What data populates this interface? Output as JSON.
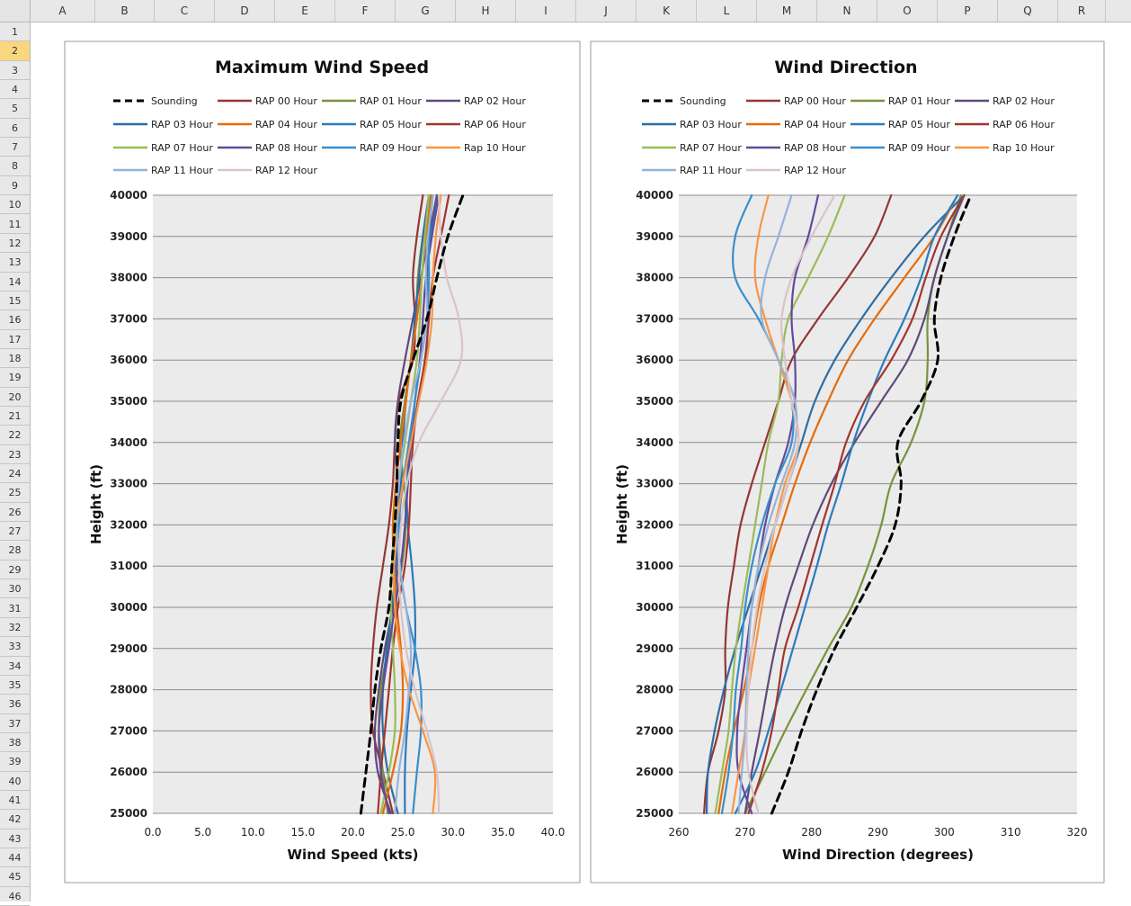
{
  "spreadsheet": {
    "columns": [
      "A",
      "B",
      "C",
      "D",
      "E",
      "F",
      "G",
      "H",
      "I",
      "J",
      "K",
      "L",
      "M",
      "N",
      "O",
      "P",
      "Q",
      "R"
    ],
    "rows": [
      "1",
      "2",
      "3",
      "4",
      "5",
      "6",
      "7",
      "8",
      "9",
      "10",
      "11",
      "12",
      "13",
      "14",
      "15",
      "16",
      "17",
      "18",
      "19",
      "20",
      "21",
      "22",
      "23",
      "24",
      "25",
      "26",
      "27",
      "28",
      "29",
      "30",
      "31",
      "32",
      "33",
      "34",
      "35",
      "36",
      "37",
      "38",
      "39",
      "40",
      "41",
      "42",
      "43",
      "44",
      "45",
      "46"
    ],
    "selected_row": "2"
  },
  "colors": {
    "Sounding": "#000000",
    "RAP 00 Hour": "#943634",
    "RAP 01 Hour": "#77933c",
    "RAP 02 Hour": "#5f497a",
    "RAP 03 Hour": "#2e6da4",
    "RAP 04 Hour": "#e46c0a",
    "RAP 05 Hour": "#2a7bbf",
    "RAP 06 Hour": "#a0362f",
    "RAP 07 Hour": "#9bbb59",
    "RAP 08 Hour": "#604a9b",
    "RAP 09 Hour": "#3a8ecb",
    "Rap 10 Hour": "#f79646",
    "RAP 11 Hour": "#95b3d7",
    "RAP 12 Hour": "#d9c3c8"
  },
  "chart_data": [
    {
      "type": "line",
      "title": "Maximum Wind Speed",
      "xlabel": "Wind Speed (kts)",
      "ylabel": "Height (ft)",
      "xlim": [
        0,
        40
      ],
      "ylim": [
        25000,
        40000
      ],
      "x_ticks": [
        "0.0",
        "5.0",
        "10.0",
        "15.0",
        "20.0",
        "25.0",
        "30.0",
        "35.0",
        "40.0"
      ],
      "y_ticks": [
        "25000",
        "26000",
        "27000",
        "28000",
        "29000",
        "30000",
        "31000",
        "32000",
        "33000",
        "34000",
        "35000",
        "36000",
        "37000",
        "38000",
        "39000",
        "40000"
      ],
      "grid": true,
      "legend_position": "top",
      "heights": [
        25000,
        26000,
        27000,
        28000,
        29000,
        30000,
        31000,
        32000,
        33000,
        34000,
        35000,
        36000,
        37000,
        38000,
        39000,
        40000
      ],
      "series": [
        {
          "name": "Sounding",
          "dash": true,
          "values": [
            20.8,
            21.3,
            21.8,
            22.2,
            22.8,
            23.6,
            23.9,
            24.2,
            24.4,
            24.5,
            24.8,
            26.0,
            27.4,
            28.4,
            29.5,
            31.0
          ]
        },
        {
          "name": "RAP 00 Hour",
          "values": [
            24.0,
            23.0,
            22.0,
            21.8,
            22.0,
            22.4,
            23.0,
            23.6,
            24.0,
            24.2,
            24.6,
            26.0,
            26.2,
            26.0,
            26.4,
            27.0
          ]
        },
        {
          "name": "RAP 01 Hour",
          "values": [
            23.5,
            23.0,
            22.6,
            22.8,
            23.5,
            24.2,
            24.9,
            25.3,
            25.1,
            24.7,
            25.2,
            25.8,
            26.3,
            26.5,
            27.0,
            27.8
          ]
        },
        {
          "name": "RAP 02 Hour",
          "values": [
            23.8,
            22.5,
            22.2,
            22.6,
            23.2,
            24.0,
            24.5,
            24.7,
            24.5,
            24.2,
            24.5,
            25.2,
            26.0,
            26.8,
            27.6,
            28.4
          ]
        },
        {
          "name": "RAP 03 Hour",
          "values": [
            24.5,
            23.5,
            23.0,
            23.0,
            23.4,
            23.9,
            24.3,
            24.6,
            24.8,
            25.0,
            25.3,
            25.8,
            26.2,
            26.6,
            27.0,
            27.6
          ]
        },
        {
          "name": "RAP 04 Hour",
          "values": [
            23.0,
            24.0,
            24.8,
            25.0,
            24.8,
            24.4,
            24.1,
            24.0,
            24.3,
            24.8,
            25.3,
            25.8,
            26.4,
            26.9,
            27.3,
            27.9
          ]
        },
        {
          "name": "RAP 05 Hour",
          "values": [
            25.2,
            25.2,
            25.4,
            25.8,
            26.2,
            26.2,
            25.9,
            25.5,
            25.4,
            25.8,
            26.5,
            27.3,
            27.5,
            27.4,
            27.8,
            28.6
          ]
        },
        {
          "name": "RAP 06 Hour",
          "values": [
            22.5,
            22.8,
            23.2,
            23.6,
            24.0,
            24.5,
            25.2,
            25.6,
            25.8,
            26.0,
            26.5,
            27.2,
            27.6,
            28.0,
            28.8,
            29.6
          ]
        },
        {
          "name": "RAP 07 Hour",
          "values": [
            22.8,
            23.6,
            24.2,
            24.2,
            24.0,
            23.8,
            23.9,
            24.2,
            24.6,
            25.2,
            25.8,
            26.4,
            26.7,
            26.9,
            27.2,
            27.6
          ]
        },
        {
          "name": "RAP 08 Hour",
          "values": [
            23.6,
            22.8,
            22.6,
            23.0,
            23.6,
            24.2,
            24.8,
            25.2,
            25.5,
            25.8,
            26.2,
            26.7,
            27.0,
            27.3,
            27.9,
            28.6
          ]
        },
        {
          "name": "RAP 09 Hour",
          "values": [
            26.0,
            26.4,
            26.8,
            26.8,
            26.2,
            25.3,
            24.7,
            24.6,
            25.0,
            25.6,
            26.2,
            26.8,
            27.4,
            27.6,
            27.6,
            28.0
          ]
        },
        {
          "name": "Rap 10 Hour",
          "values": [
            28.0,
            28.2,
            27.0,
            25.6,
            24.7,
            24.2,
            24.1,
            24.4,
            25.0,
            25.8,
            26.6,
            27.4,
            27.9,
            28.0,
            28.3,
            28.8
          ]
        },
        {
          "name": "RAP 11 Hour",
          "values": [
            24.2,
            24.6,
            25.2,
            25.6,
            25.8,
            25.3,
            24.7,
            24.4,
            24.6,
            25.1,
            25.8,
            26.8,
            27.4,
            27.3,
            27.5,
            28.0
          ]
        },
        {
          "name": "RAP 12 Hour",
          "values": [
            28.6,
            28.4,
            27.4,
            26.2,
            25.3,
            24.8,
            24.6,
            24.8,
            25.4,
            26.6,
            28.8,
            30.8,
            30.6,
            29.4,
            28.8,
            28.6
          ]
        }
      ]
    },
    {
      "type": "line",
      "title": "Wind Direction",
      "xlabel": "Wind Direction (degrees)",
      "ylabel": "Height (ft)",
      "xlim": [
        260,
        320
      ],
      "ylim": [
        25000,
        40000
      ],
      "x_ticks": [
        "260",
        "270",
        "280",
        "290",
        "300",
        "310",
        "320"
      ],
      "y_ticks": [
        "25000",
        "26000",
        "27000",
        "28000",
        "29000",
        "30000",
        "31000",
        "32000",
        "33000",
        "34000",
        "35000",
        "36000",
        "37000",
        "38000",
        "39000",
        "40000"
      ],
      "grid": true,
      "legend_position": "top",
      "heights": [
        25000,
        26000,
        27000,
        28000,
        29000,
        30000,
        31000,
        32000,
        33000,
        34000,
        35000,
        36000,
        37000,
        38000,
        39000,
        40000
      ],
      "series": [
        {
          "name": "Sounding",
          "dash": true,
          "values": [
            274.0,
            276.5,
            278.5,
            280.8,
            283.5,
            286.8,
            290.0,
            292.6,
            293.5,
            293.0,
            296.5,
            299.0,
            298.5,
            299.5,
            301.5,
            304.0
          ]
        },
        {
          "name": "RAP 00 Hour",
          "values": [
            263.8,
            264.4,
            266.0,
            267.0,
            267.0,
            267.4,
            268.3,
            269.3,
            271.0,
            273.0,
            275.0,
            277.0,
            281.0,
            285.5,
            289.5,
            292.0
          ]
        },
        {
          "name": "RAP 01 Hour",
          "values": [
            270.0,
            273.0,
            276.0,
            279.2,
            282.5,
            286.0,
            288.5,
            290.5,
            292.0,
            295.0,
            297.0,
            297.5,
            297.5,
            298.5,
            300.5,
            302.5
          ]
        },
        {
          "name": "RAP 02 Hour",
          "values": [
            270.0,
            271.0,
            272.2,
            273.3,
            274.5,
            276.0,
            278.0,
            280.2,
            283.0,
            286.5,
            290.5,
            294.5,
            297.0,
            298.5,
            300.5,
            303.0
          ]
        },
        {
          "name": "RAP 03 Hour",
          "values": [
            264.2,
            264.4,
            265.4,
            266.8,
            268.5,
            270.5,
            272.5,
            274.5,
            276.5,
            278.5,
            280.5,
            283.5,
            287.5,
            292.0,
            297.0,
            303.0
          ]
        },
        {
          "name": "RAP 04 Hour",
          "values": [
            266.0,
            267.0,
            268.3,
            269.8,
            271.0,
            272.0,
            273.5,
            275.5,
            277.5,
            279.8,
            282.5,
            285.5,
            289.5,
            294.0,
            298.5,
            302.0
          ]
        },
        {
          "name": "RAP 05 Hour",
          "values": [
            268.5,
            271.5,
            273.5,
            275.4,
            277.2,
            279.0,
            280.8,
            282.5,
            284.5,
            286.3,
            288.5,
            291.0,
            294.0,
            296.5,
            298.5,
            302.0
          ]
        },
        {
          "name": "RAP 06 Hour",
          "values": [
            270.5,
            272.5,
            274.0,
            275.0,
            276.0,
            278.0,
            279.8,
            281.6,
            283.5,
            285.2,
            288.0,
            292.0,
            295.2,
            297.2,
            299.5,
            303.0
          ]
        },
        {
          "name": "RAP 07 Hour",
          "values": [
            265.5,
            266.5,
            267.5,
            268.0,
            268.6,
            269.5,
            270.5,
            271.5,
            272.5,
            273.5,
            275.0,
            275.5,
            276.5,
            279.5,
            282.5,
            285.0
          ]
        },
        {
          "name": "RAP 08 Hour",
          "values": [
            271.0,
            269.0,
            268.8,
            269.4,
            270.2,
            271.0,
            272.0,
            273.0,
            274.5,
            276.5,
            277.5,
            277.5,
            277.0,
            277.5,
            279.5,
            281.0
          ]
        },
        {
          "name": "RAP 09 Hour",
          "values": [
            266.5,
            267.5,
            268.2,
            268.6,
            269.4,
            270.0,
            271.0,
            272.5,
            274.5,
            277.0,
            277.0,
            275.0,
            272.0,
            268.5,
            268.5,
            271.0
          ]
        },
        {
          "name": "Rap 10 Hour",
          "values": [
            268.0,
            269.0,
            270.0,
            270.5,
            271.5,
            272.5,
            273.5,
            274.5,
            276.0,
            278.0,
            277.0,
            275.0,
            273.0,
            271.5,
            272.0,
            273.5
          ]
        },
        {
          "name": "RAP 11 Hour",
          "values": [
            269.0,
            269.5,
            270.0,
            270.2,
            270.5,
            271.0,
            272.0,
            273.5,
            275.5,
            277.5,
            277.5,
            275.0,
            272.5,
            273.0,
            275.0,
            277.0
          ]
        },
        {
          "name": "RAP 12 Hour",
          "values": [
            272.0,
            270.5,
            270.2,
            270.5,
            271.0,
            271.8,
            273.0,
            274.5,
            276.5,
            278.0,
            277.0,
            276.0,
            275.5,
            277.0,
            280.0,
            283.5
          ]
        }
      ]
    }
  ]
}
